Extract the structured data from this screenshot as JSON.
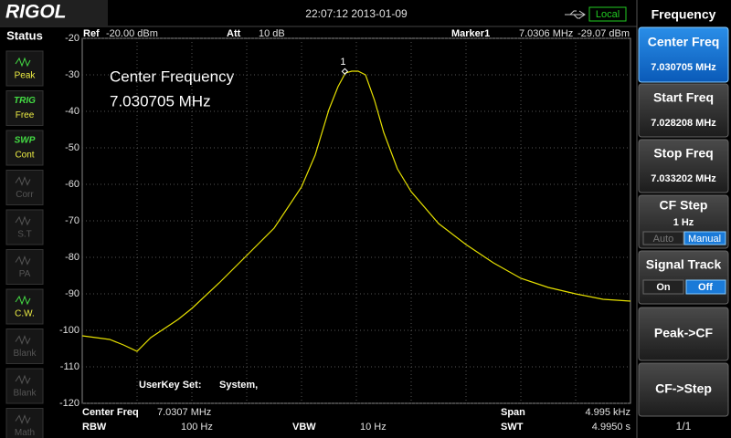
{
  "header": {
    "brand": "RIGOL",
    "datetime": "22:07:12 2013-01-09",
    "remote": "Local"
  },
  "status": {
    "title": "Status",
    "items": [
      {
        "top": "",
        "bottom": "Peak"
      },
      {
        "top": "TRIG",
        "bottom": "Free"
      },
      {
        "top": "SWP",
        "bottom": "Cont"
      },
      {
        "top": "",
        "bottom": "Corr"
      },
      {
        "top": "",
        "bottom": "S.T"
      },
      {
        "top": "",
        "bottom": "PA"
      },
      {
        "top": "",
        "bottom": "C.W."
      },
      {
        "top": "",
        "bottom": "Blank"
      },
      {
        "top": "",
        "bottom": "Blank"
      },
      {
        "top": "",
        "bottom": "Math"
      }
    ]
  },
  "plot_header": {
    "ref_label": "Ref",
    "ref_value": "-20.00 dBm",
    "att_label": "Att",
    "att_value": "10 dB",
    "marker_label": "Marker1",
    "marker_freq": "7.0306 MHz",
    "marker_level": "-29.07 dBm"
  },
  "chart_data": {
    "type": "line",
    "color": "#e6e000",
    "x": [
      7.028208,
      7.028333,
      7.028458,
      7.028583,
      7.028707,
      7.028832,
      7.028957,
      7.029082,
      7.029207,
      7.029456,
      7.029706,
      7.029956,
      7.030205,
      7.03033,
      7.030455,
      7.030538,
      7.030605,
      7.030663,
      7.030721,
      7.030788,
      7.030871,
      7.030954,
      7.031079,
      7.031204,
      7.031454,
      7.031704,
      7.031953,
      7.032203,
      7.032453,
      7.032702,
      7.032952,
      7.033202
    ],
    "values": [
      -101.5,
      -102,
      -102.5,
      -104,
      -105.75,
      -102,
      -99.5,
      -97,
      -94,
      -87,
      -79.5,
      -72,
      -60.75,
      -52,
      -39.5,
      -33.25,
      -29.5,
      -29,
      -29,
      -30,
      -37,
      -45.75,
      -55.75,
      -62,
      -70.75,
      -76.5,
      -81.5,
      -85.75,
      -88.25,
      -90,
      -91.5,
      -92
    ],
    "xlim": [
      7.028208,
      7.033202
    ],
    "ylim": [
      -120,
      -20
    ],
    "yticks": [
      -20,
      -30,
      -40,
      -50,
      -60,
      -70,
      -80,
      -90,
      -100,
      -110,
      -120
    ],
    "grid": true,
    "marker": {
      "label": "1",
      "x": 7.0306,
      "y": -29.07
    },
    "annotation": [
      "Center Frequency",
      "7.030705 MHz"
    ],
    "userkey": [
      "UserKey Set:",
      "System,"
    ]
  },
  "footer": {
    "center_label": "Center Freq",
    "center_value": "7.0307 MHz",
    "span_label": "Span",
    "span_value": "4.995 kHz",
    "rbw_label": "RBW",
    "rbw_value": "100 Hz",
    "vbw_label": "VBW",
    "vbw_value": "10 Hz",
    "swt_label": "SWT",
    "swt_value": "4.9950 s"
  },
  "menu": {
    "title": "Frequency",
    "center": {
      "label": "Center Freq",
      "value": "7.030705 MHz"
    },
    "start": {
      "label": "Start Freq",
      "value": "7.028208 MHz"
    },
    "stop": {
      "label": "Stop Freq",
      "value": "7.033202 MHz"
    },
    "cfstep": {
      "label": "CF Step",
      "value": "1 Hz",
      "options": [
        "Auto",
        "Manual"
      ]
    },
    "track": {
      "label": "Signal Track",
      "options": [
        "On",
        "Off"
      ]
    },
    "peak_cf": "Peak->CF",
    "cf_step": "CF->Step",
    "page": "1/1"
  }
}
